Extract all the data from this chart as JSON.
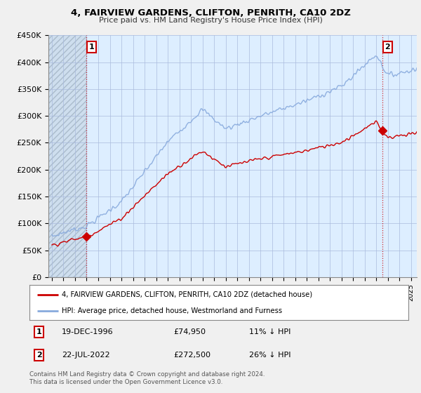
{
  "title": "4, FAIRVIEW GARDENS, CLIFTON, PENRITH, CA10 2DZ",
  "subtitle": "Price paid vs. HM Land Registry's House Price Index (HPI)",
  "ylim": [
    0,
    450000
  ],
  "yticks": [
    0,
    50000,
    100000,
    150000,
    200000,
    250000,
    300000,
    350000,
    400000,
    450000
  ],
  "ytick_labels": [
    "£0",
    "£50K",
    "£100K",
    "£150K",
    "£200K",
    "£250K",
    "£300K",
    "£350K",
    "£400K",
    "£450K"
  ],
  "sale1_date_num": 1996.97,
  "sale1_price": 74950,
  "sale2_date_num": 2022.55,
  "sale2_price": 272500,
  "house_color": "#cc0000",
  "hpi_color": "#88aadd",
  "background_color": "#f0f0f0",
  "plot_bg_color": "#ddeeff",
  "legend_house": "4, FAIRVIEW GARDENS, CLIFTON, PENRITH, CA10 2DZ (detached house)",
  "legend_hpi": "HPI: Average price, detached house, Westmorland and Furness",
  "footnote": "Contains HM Land Registry data © Crown copyright and database right 2024.\nThis data is licensed under the Open Government Licence v3.0.",
  "xmin": 1993.7,
  "xmax": 2025.5
}
